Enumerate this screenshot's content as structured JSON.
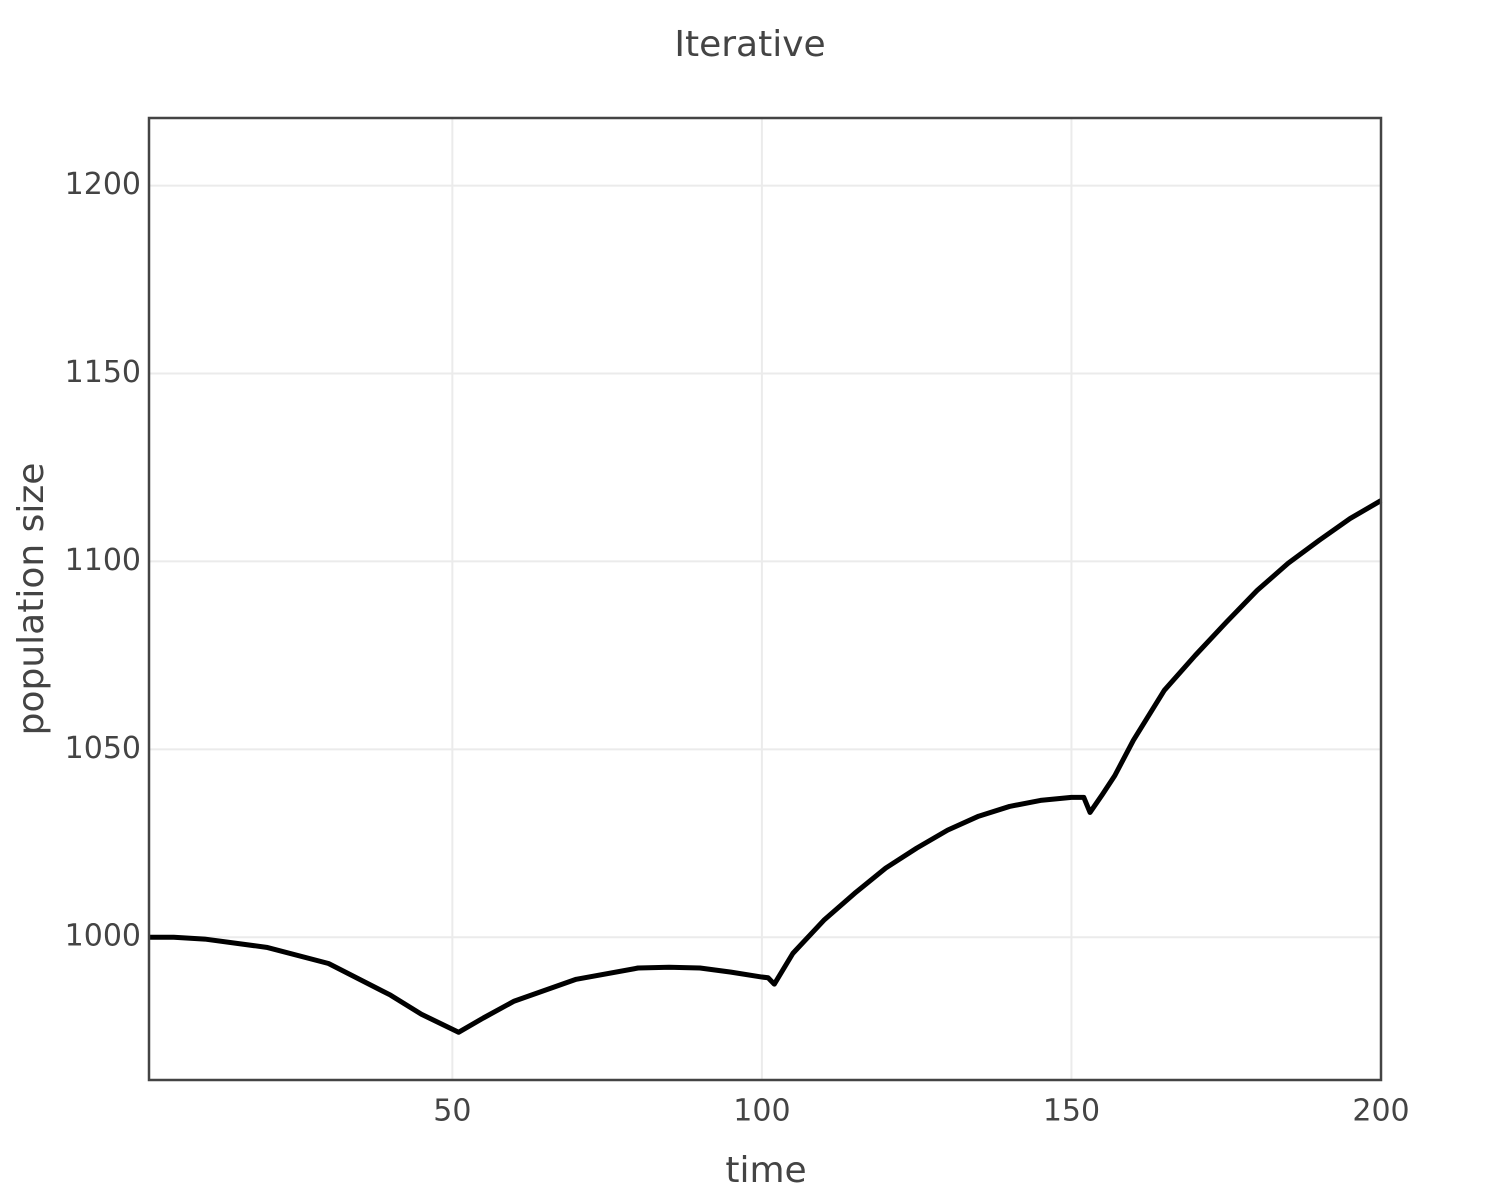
{
  "chart_data": {
    "type": "line",
    "title": "Iterative",
    "x_label": "time",
    "y_label": "population size",
    "x": [
      1,
      5,
      10,
      20,
      30,
      40,
      45,
      51,
      55,
      60,
      70,
      80,
      85,
      90,
      95,
      100,
      101,
      102,
      105,
      110,
      115,
      120,
      125,
      130,
      135,
      140,
      145,
      150,
      152,
      153,
      155,
      157,
      160,
      165,
      170,
      175,
      180,
      185,
      190,
      195,
      200
    ],
    "series": [
      {
        "name": "population",
        "color": "#000000",
        "values": [
          1000,
          1000,
          999.5,
          997.3,
          993,
          984.6,
          979.5,
          974.7,
          978.5,
          983,
          988.8,
          991.8,
          992,
          991.8,
          990.7,
          989.4,
          989.2,
          987.5,
          995.7,
          1004.5,
          1011.7,
          1018.4,
          1023.7,
          1028.5,
          1032.2,
          1034.8,
          1036.4,
          1037.2,
          1037.2,
          1033.2,
          1038,
          1043,
          1052.4,
          1065.7,
          1075,
          1083.8,
          1092.3,
          1099.5,
          1105.6,
          1111.4,
          1116.2
        ]
      }
    ],
    "xlim": [
      1,
      200
    ],
    "ylim": [
      962,
      1218
    ],
    "xticks": [
      50,
      100,
      150,
      200
    ],
    "yticks": [
      1000,
      1050,
      1100,
      1150,
      1200
    ],
    "grid": true
  }
}
